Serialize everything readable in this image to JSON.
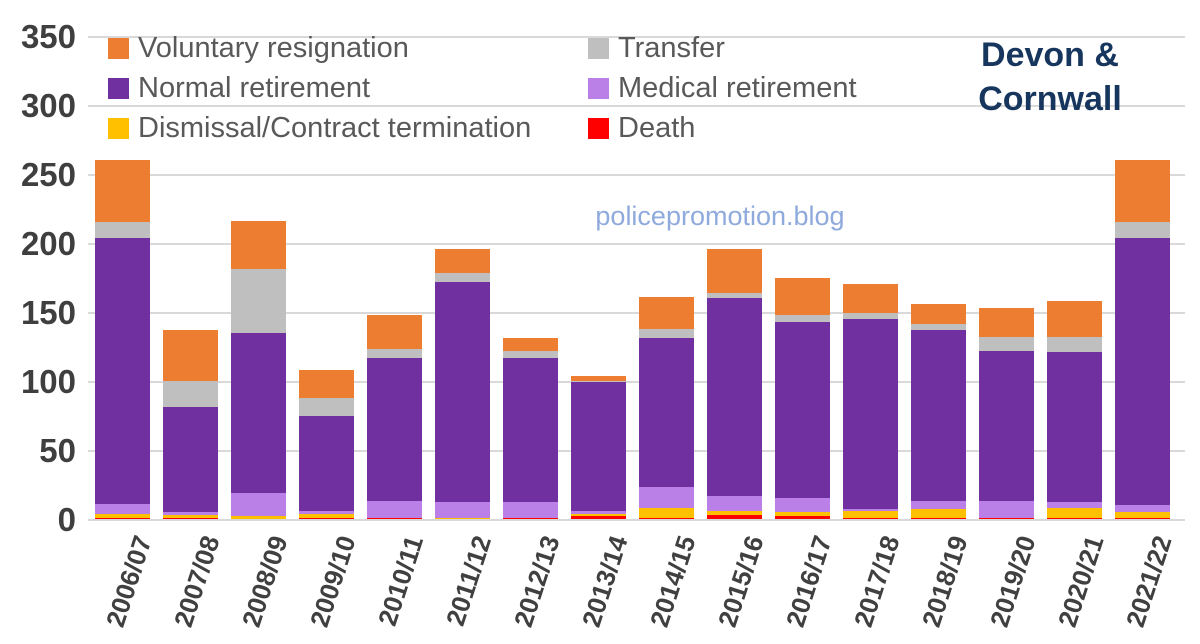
{
  "title": {
    "line1": "Devon &",
    "line2": "Cornwall"
  },
  "watermark": "policepromotion.blog",
  "colors": {
    "background": "#FFFFFF",
    "gridline": "#D9D9D9",
    "axis_text": "#3F3F3F",
    "legend_text": "#595959",
    "title_text": "#17365D",
    "watermark_text": "#8FAADC"
  },
  "chart_data": {
    "type": "bar",
    "stacked": true,
    "title": "Devon & Cornwall",
    "xlabel": "",
    "ylabel": "",
    "ylim": [
      0,
      350
    ],
    "yticks": [
      0,
      50,
      100,
      150,
      200,
      250,
      300,
      350
    ],
    "grid": true,
    "legend_position": "top-left-overlay-two-columns",
    "categories": [
      "2006/07",
      "2007/08",
      "2008/09",
      "2009/10",
      "2010/11",
      "2011/12",
      "2012/13",
      "2013/14",
      "2014/15",
      "2015/16",
      "2016/17",
      "2017/18",
      "2018/19",
      "2019/20",
      "2020/21",
      "2021/22"
    ],
    "stack_order_note": "series listed bottom-to-top of stack",
    "series": [
      {
        "name": "Death",
        "color": "#FF0000",
        "values": [
          1,
          1,
          0,
          1,
          1,
          0,
          1,
          2,
          1,
          3,
          2,
          1,
          1,
          1,
          1,
          1
        ]
      },
      {
        "name": "Dismissal/Contract termination",
        "color": "#FFC000",
        "values": [
          3,
          2,
          2,
          3,
          0,
          1,
          0,
          2,
          7,
          3,
          3,
          5,
          6,
          0,
          7,
          4
        ]
      },
      {
        "name": "Medical retirement",
        "color": "#BB80E8",
        "values": [
          7,
          2,
          17,
          2,
          12,
          11,
          11,
          2,
          15,
          11,
          10,
          1,
          6,
          12,
          4,
          5
        ]
      },
      {
        "name": "Normal retirement",
        "color": "#7030A0",
        "values": [
          193,
          76,
          116,
          69,
          104,
          160,
          105,
          93,
          108,
          143,
          128,
          138,
          124,
          109,
          109,
          194
        ]
      },
      {
        "name": "Transfer",
        "color": "#BFBFBF",
        "values": [
          11,
          19,
          46,
          13,
          6,
          6,
          5,
          1,
          7,
          4,
          5,
          4,
          4,
          10,
          11,
          11
        ]
      },
      {
        "name": "Voluntary resignation",
        "color": "#ED7D31",
        "values": [
          45,
          37,
          35,
          20,
          25,
          18,
          9,
          4,
          23,
          32,
          27,
          21,
          15,
          21,
          26,
          45
        ]
      }
    ],
    "totals": [
      260,
      137,
      216,
      108,
      148,
      196,
      131,
      104,
      161,
      196,
      175,
      170,
      156,
      153,
      158,
      260
    ],
    "legend_order": [
      "Voluntary resignation",
      "Transfer",
      "Normal retirement",
      "Medical retirement",
      "Dismissal/Contract termination",
      "Death"
    ]
  }
}
